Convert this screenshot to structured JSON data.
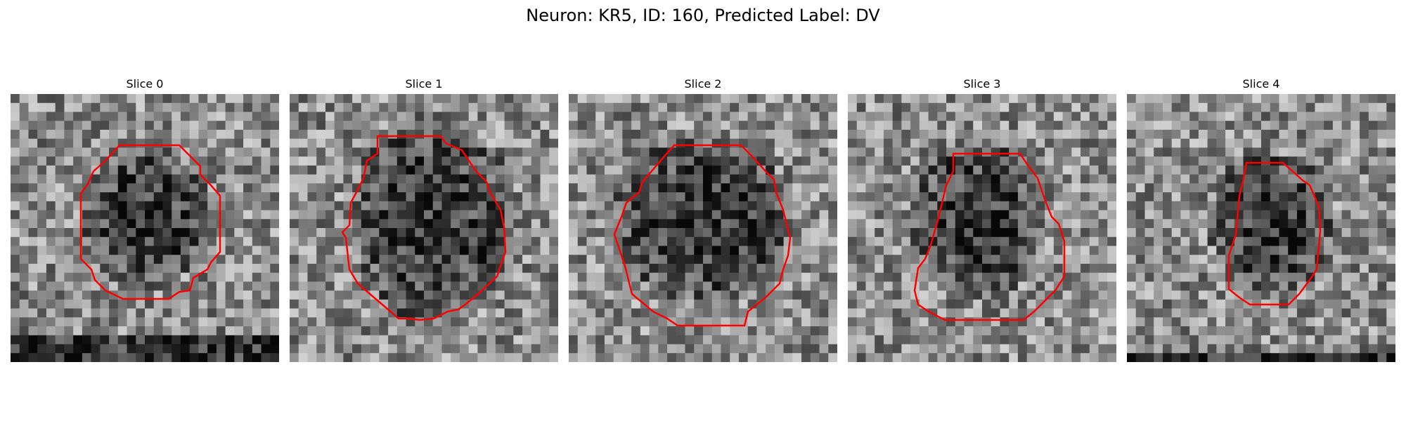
{
  "figure": {
    "title": "Neuron: KR5, ID: 160, Predicted Label: DV",
    "contour_color": "#ff0000",
    "panels": [
      {
        "title": "Slice 0"
      },
      {
        "title": "Slice 1"
      },
      {
        "title": "Slice 2"
      },
      {
        "title": "Slice 3"
      },
      {
        "title": "Slice 4"
      }
    ]
  }
}
